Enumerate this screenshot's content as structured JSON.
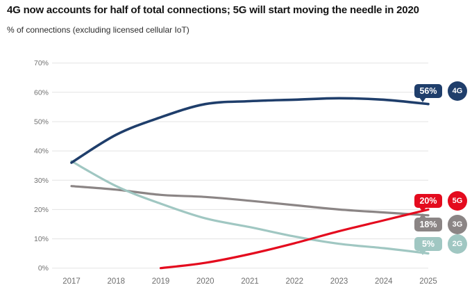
{
  "header": {
    "title": "4G now accounts for half of total connections; 5G will start moving the needle in 2020",
    "subtitle": "% of connections (excluding licensed cellular IoT)"
  },
  "chart_data": {
    "type": "line",
    "x": [
      "2017",
      "2018",
      "2019",
      "2020",
      "2021",
      "2022",
      "2023",
      "2024",
      "2025"
    ],
    "series": [
      {
        "name": "3G",
        "color": "#8b8585",
        "values": [
          28,
          26.8,
          25,
          24.3,
          23,
          21.5,
          20,
          19,
          18
        ]
      },
      {
        "name": "2G",
        "color": "#a0c7c2",
        "values": [
          36.5,
          28,
          22,
          17,
          14,
          10.8,
          8.3,
          6.8,
          5
        ]
      },
      {
        "name": "4G",
        "color": "#1f3e6b",
        "values": [
          36,
          45.5,
          51.5,
          56,
          57,
          57.5,
          58,
          57.5,
          56
        ]
      },
      {
        "name": "5G",
        "color": "#e40b1e",
        "values": [
          null,
          null,
          0,
          1.8,
          4.8,
          8.5,
          12.6,
          16.3,
          20
        ]
      }
    ],
    "ylim": [
      0,
      70
    ],
    "yticks": [
      "0%",
      "10%",
      "20%",
      "30%",
      "40%",
      "50%",
      "60%",
      "70%"
    ],
    "grid": "horizontal",
    "legend_position": "right-end-badges"
  },
  "end_labels": {
    "g4": {
      "value": "56%",
      "badge": "4G",
      "color": "#1f3e6b"
    },
    "g5": {
      "value": "20%",
      "badge": "5G",
      "color": "#e40b1e"
    },
    "g3": {
      "value": "18%",
      "badge": "3G",
      "color": "#8b8585"
    },
    "g2": {
      "value": "5%",
      "badge": "2G",
      "color": "#a0c7c2"
    }
  },
  "style_colors": {
    "gridline": "#e3e3e3",
    "axis_text": "#717171",
    "title_text": "#141414"
  }
}
